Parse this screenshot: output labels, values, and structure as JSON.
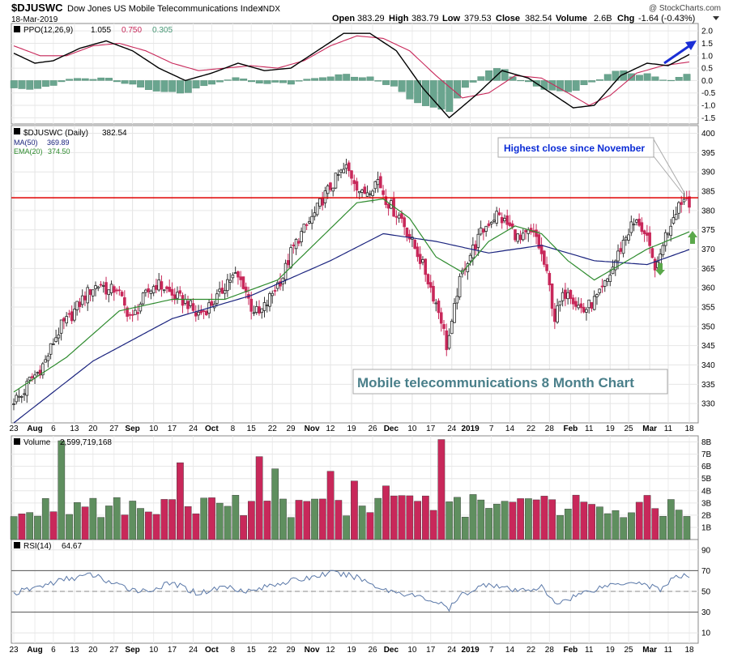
{
  "header": {
    "symbol": "$DJUSWC",
    "name": "Dow Jones US Mobile Telecommunications Index",
    "exchange": "INDX",
    "date": "18-Mar-2019",
    "open_label": "Open",
    "open": "383.29",
    "high_label": "High",
    "high": "383.79",
    "low_label": "Low",
    "low": "379.53",
    "close_label": "Close",
    "close": "382.54",
    "volume_label": "Volume",
    "volume": "2.6B",
    "chg_label": "Chg",
    "chg": "-1.64 (-0.43%)",
    "brand": "@ StockCharts.com"
  },
  "ppo_panel": {
    "label": "PPO(12,26,9)",
    "ppo_value": "1.055",
    "signal_value": "0.750",
    "hist_value": "0.305",
    "ticks": [
      "2.0",
      "1.5",
      "1.0",
      "0.5",
      "0.0",
      "-0.5",
      "-1.0",
      "-1.5"
    ],
    "ylim": [
      -1.75,
      2.3
    ]
  },
  "price_panel": {
    "label": "$DJUSWC (Daily)",
    "close_value": "382.54",
    "ma_label": "MA(50)",
    "ma_value": "369.89",
    "ema_label": "EMA(20)",
    "ema_value": "374.50",
    "ticks": [
      "400",
      "395",
      "390",
      "385",
      "380",
      "375",
      "370",
      "365",
      "360",
      "355",
      "350",
      "345",
      "340",
      "335",
      "330"
    ],
    "ylim": [
      325,
      402
    ],
    "resistance_level": 383.3,
    "annotation_high": "Highest close since November",
    "annotation_title": "Mobile telecommunications 8 Month Chart"
  },
  "volume_panel": {
    "label": "Volume",
    "value": "2,599,719,168",
    "ticks": [
      "8B",
      "7B",
      "6B",
      "5B",
      "4B",
      "3B",
      "2B",
      "1B"
    ],
    "ylim": [
      0,
      8.5
    ]
  },
  "rsi_panel": {
    "label": "RSI(14)",
    "value": "64.67",
    "ticks": [
      "90",
      "70",
      "50",
      "30",
      "10"
    ],
    "ylim": [
      0,
      100
    ]
  },
  "x_axis": {
    "labels": [
      "23",
      "Aug",
      "6",
      "13",
      "20",
      "27",
      "Sep",
      "10",
      "17",
      "24",
      "Oct",
      "8",
      "15",
      "22",
      "29",
      "Nov",
      "12",
      "19",
      "26",
      "Dec",
      "10",
      "17",
      "24",
      "2019",
      "7",
      "14",
      "22",
      "28",
      "Feb",
      "11",
      "19",
      "25",
      "Mar",
      "11",
      "18"
    ]
  },
  "colors": {
    "up": "#5f8f5f",
    "down": "#c8285a",
    "ma50": "#1a237e",
    "ema20": "#2e8b2e",
    "ppo_line": "#000000",
    "signal_line": "#c8285a",
    "histogram": "#6aa58f",
    "resistance": "#e00000",
    "annotation_text": "#0a2bd6",
    "title_text": "#4a7f8a",
    "arrow_blue": "#1a2ed6",
    "arrow_green": "#5aa84a"
  },
  "chart_data": {
    "type": "candlestick",
    "title": "$DJUSWC Dow Jones US Mobile Telecommunications Index INDX",
    "period": "Jul 2018 - 18-Mar-2019 daily",
    "close_anchors": [
      [
        0,
        331
      ],
      [
        3,
        332
      ],
      [
        6,
        336
      ],
      [
        9,
        338
      ],
      [
        12,
        341
      ],
      [
        15,
        346
      ],
      [
        18,
        350
      ],
      [
        21,
        352
      ],
      [
        24,
        355
      ],
      [
        27,
        358
      ],
      [
        30,
        360
      ],
      [
        33,
        361
      ],
      [
        36,
        359
      ],
      [
        39,
        360
      ],
      [
        42,
        355
      ],
      [
        45,
        352
      ],
      [
        48,
        356
      ],
      [
        51,
        359
      ],
      [
        54,
        361
      ],
      [
        57,
        360
      ],
      [
        60,
        358
      ],
      [
        63,
        357
      ],
      [
        66,
        356
      ],
      [
        69,
        353
      ],
      [
        72,
        354
      ],
      [
        75,
        356
      ],
      [
        78,
        358
      ],
      [
        81,
        362
      ],
      [
        84,
        363
      ],
      [
        87,
        361
      ],
      [
        90,
        355
      ],
      [
        93,
        353
      ],
      [
        96,
        356
      ],
      [
        99,
        360
      ],
      [
        102,
        363
      ],
      [
        105,
        369
      ],
      [
        108,
        373
      ],
      [
        111,
        376
      ],
      [
        114,
        379
      ],
      [
        117,
        383
      ],
      [
        120,
        386
      ],
      [
        123,
        389
      ],
      [
        126,
        391
      ],
      [
        129,
        388
      ],
      [
        132,
        384
      ],
      [
        135,
        386
      ],
      [
        138,
        388
      ],
      [
        141,
        383
      ],
      [
        144,
        380
      ],
      [
        147,
        378
      ],
      [
        150,
        373
      ],
      [
        153,
        369
      ],
      [
        156,
        364
      ],
      [
        159,
        358
      ],
      [
        162,
        352
      ],
      [
        164,
        345
      ],
      [
        166,
        350
      ],
      [
        168,
        359
      ],
      [
        171,
        366
      ],
      [
        174,
        370
      ],
      [
        177,
        374
      ],
      [
        180,
        377
      ],
      [
        183,
        379
      ],
      [
        186,
        377
      ],
      [
        189,
        375
      ],
      [
        192,
        372
      ],
      [
        195,
        374
      ],
      [
        198,
        373
      ],
      [
        201,
        366
      ],
      [
        203,
        360
      ],
      [
        205,
        352
      ],
      [
        207,
        356
      ],
      [
        210,
        360
      ],
      [
        213,
        356
      ],
      [
        216,
        354
      ],
      [
        219,
        356
      ],
      [
        222,
        358
      ],
      [
        225,
        362
      ],
      [
        228,
        367
      ],
      [
        231,
        372
      ],
      [
        234,
        376
      ],
      [
        237,
        377
      ],
      [
        240,
        372
      ],
      [
        242,
        367
      ],
      [
        244,
        365
      ],
      [
        246,
        372
      ],
      [
        248,
        375
      ],
      [
        250,
        379
      ],
      [
        252,
        382
      ],
      [
        255,
        383.5
      ],
      [
        256,
        382.54
      ]
    ],
    "ma50_anchors": [
      [
        0,
        325
      ],
      [
        30,
        341
      ],
      [
        60,
        352
      ],
      [
        90,
        358
      ],
      [
        120,
        367
      ],
      [
        140,
        374
      ],
      [
        160,
        372
      ],
      [
        180,
        369
      ],
      [
        200,
        371
      ],
      [
        220,
        367
      ],
      [
        240,
        366
      ],
      [
        256,
        369.89
      ]
    ],
    "ema20_anchors": [
      [
        0,
        333
      ],
      [
        20,
        342
      ],
      [
        40,
        354
      ],
      [
        60,
        357
      ],
      [
        80,
        357
      ],
      [
        100,
        362
      ],
      [
        115,
        372
      ],
      [
        130,
        382
      ],
      [
        140,
        383
      ],
      [
        150,
        378
      ],
      [
        160,
        368
      ],
      [
        170,
        364
      ],
      [
        180,
        372
      ],
      [
        190,
        376
      ],
      [
        200,
        374
      ],
      [
        210,
        367
      ],
      [
        220,
        362
      ],
      [
        230,
        366
      ],
      [
        240,
        370
      ],
      [
        256,
        374.5
      ]
    ],
    "ppo_anchors": [
      [
        0,
        1.1
      ],
      [
        8,
        0.7
      ],
      [
        15,
        0.8
      ],
      [
        25,
        1.3
      ],
      [
        35,
        1.6
      ],
      [
        45,
        1.2
      ],
      [
        55,
        0.5
      ],
      [
        65,
        0.0
      ],
      [
        75,
        0.3
      ],
      [
        85,
        0.7
      ],
      [
        95,
        0.4
      ],
      [
        105,
        0.5
      ],
      [
        115,
        1.2
      ],
      [
        125,
        1.9
      ],
      [
        135,
        1.9
      ],
      [
        145,
        1.2
      ],
      [
        155,
        -0.3
      ],
      [
        165,
        -1.5
      ],
      [
        175,
        -0.6
      ],
      [
        185,
        0.4
      ],
      [
        195,
        0.1
      ],
      [
        205,
        -0.6
      ],
      [
        212,
        -1.1
      ],
      [
        220,
        -1.0
      ],
      [
        230,
        0.2
      ],
      [
        240,
        0.7
      ],
      [
        248,
        0.6
      ],
      [
        256,
        1.05
      ]
    ],
    "signal_anchors": [
      [
        0,
        1.4
      ],
      [
        10,
        1.0
      ],
      [
        20,
        1.0
      ],
      [
        30,
        1.4
      ],
      [
        40,
        1.5
      ],
      [
        50,
        1.2
      ],
      [
        60,
        0.7
      ],
      [
        70,
        0.4
      ],
      [
        80,
        0.5
      ],
      [
        90,
        0.6
      ],
      [
        100,
        0.5
      ],
      [
        110,
        0.8
      ],
      [
        120,
        1.4
      ],
      [
        130,
        1.8
      ],
      [
        140,
        1.7
      ],
      [
        150,
        1.2
      ],
      [
        160,
        0.2
      ],
      [
        170,
        -0.7
      ],
      [
        180,
        -0.5
      ],
      [
        190,
        0.2
      ],
      [
        200,
        0.1
      ],
      [
        210,
        -0.5
      ],
      [
        218,
        -1.0
      ],
      [
        226,
        -0.6
      ],
      [
        236,
        0.3
      ],
      [
        246,
        0.6
      ],
      [
        256,
        0.75
      ]
    ],
    "rsi_anchors": [
      [
        0,
        48
      ],
      [
        10,
        55
      ],
      [
        20,
        62
      ],
      [
        30,
        66
      ],
      [
        40,
        55
      ],
      [
        50,
        50
      ],
      [
        60,
        58
      ],
      [
        70,
        48
      ],
      [
        80,
        55
      ],
      [
        90,
        50
      ],
      [
        100,
        58
      ],
      [
        110,
        62
      ],
      [
        120,
        68
      ],
      [
        130,
        64
      ],
      [
        140,
        52
      ],
      [
        150,
        47
      ],
      [
        160,
        40
      ],
      [
        165,
        33
      ],
      [
        170,
        47
      ],
      [
        180,
        58
      ],
      [
        190,
        50
      ],
      [
        200,
        54
      ],
      [
        205,
        38
      ],
      [
        215,
        48
      ],
      [
        225,
        56
      ],
      [
        235,
        60
      ],
      [
        245,
        52
      ],
      [
        250,
        63
      ],
      [
        256,
        64.67
      ]
    ],
    "annotations": [
      {
        "text": "Highest close since November",
        "type": "callout"
      },
      {
        "text": "Mobile telecommunications 8 Month Chart",
        "type": "title-box"
      }
    ]
  }
}
